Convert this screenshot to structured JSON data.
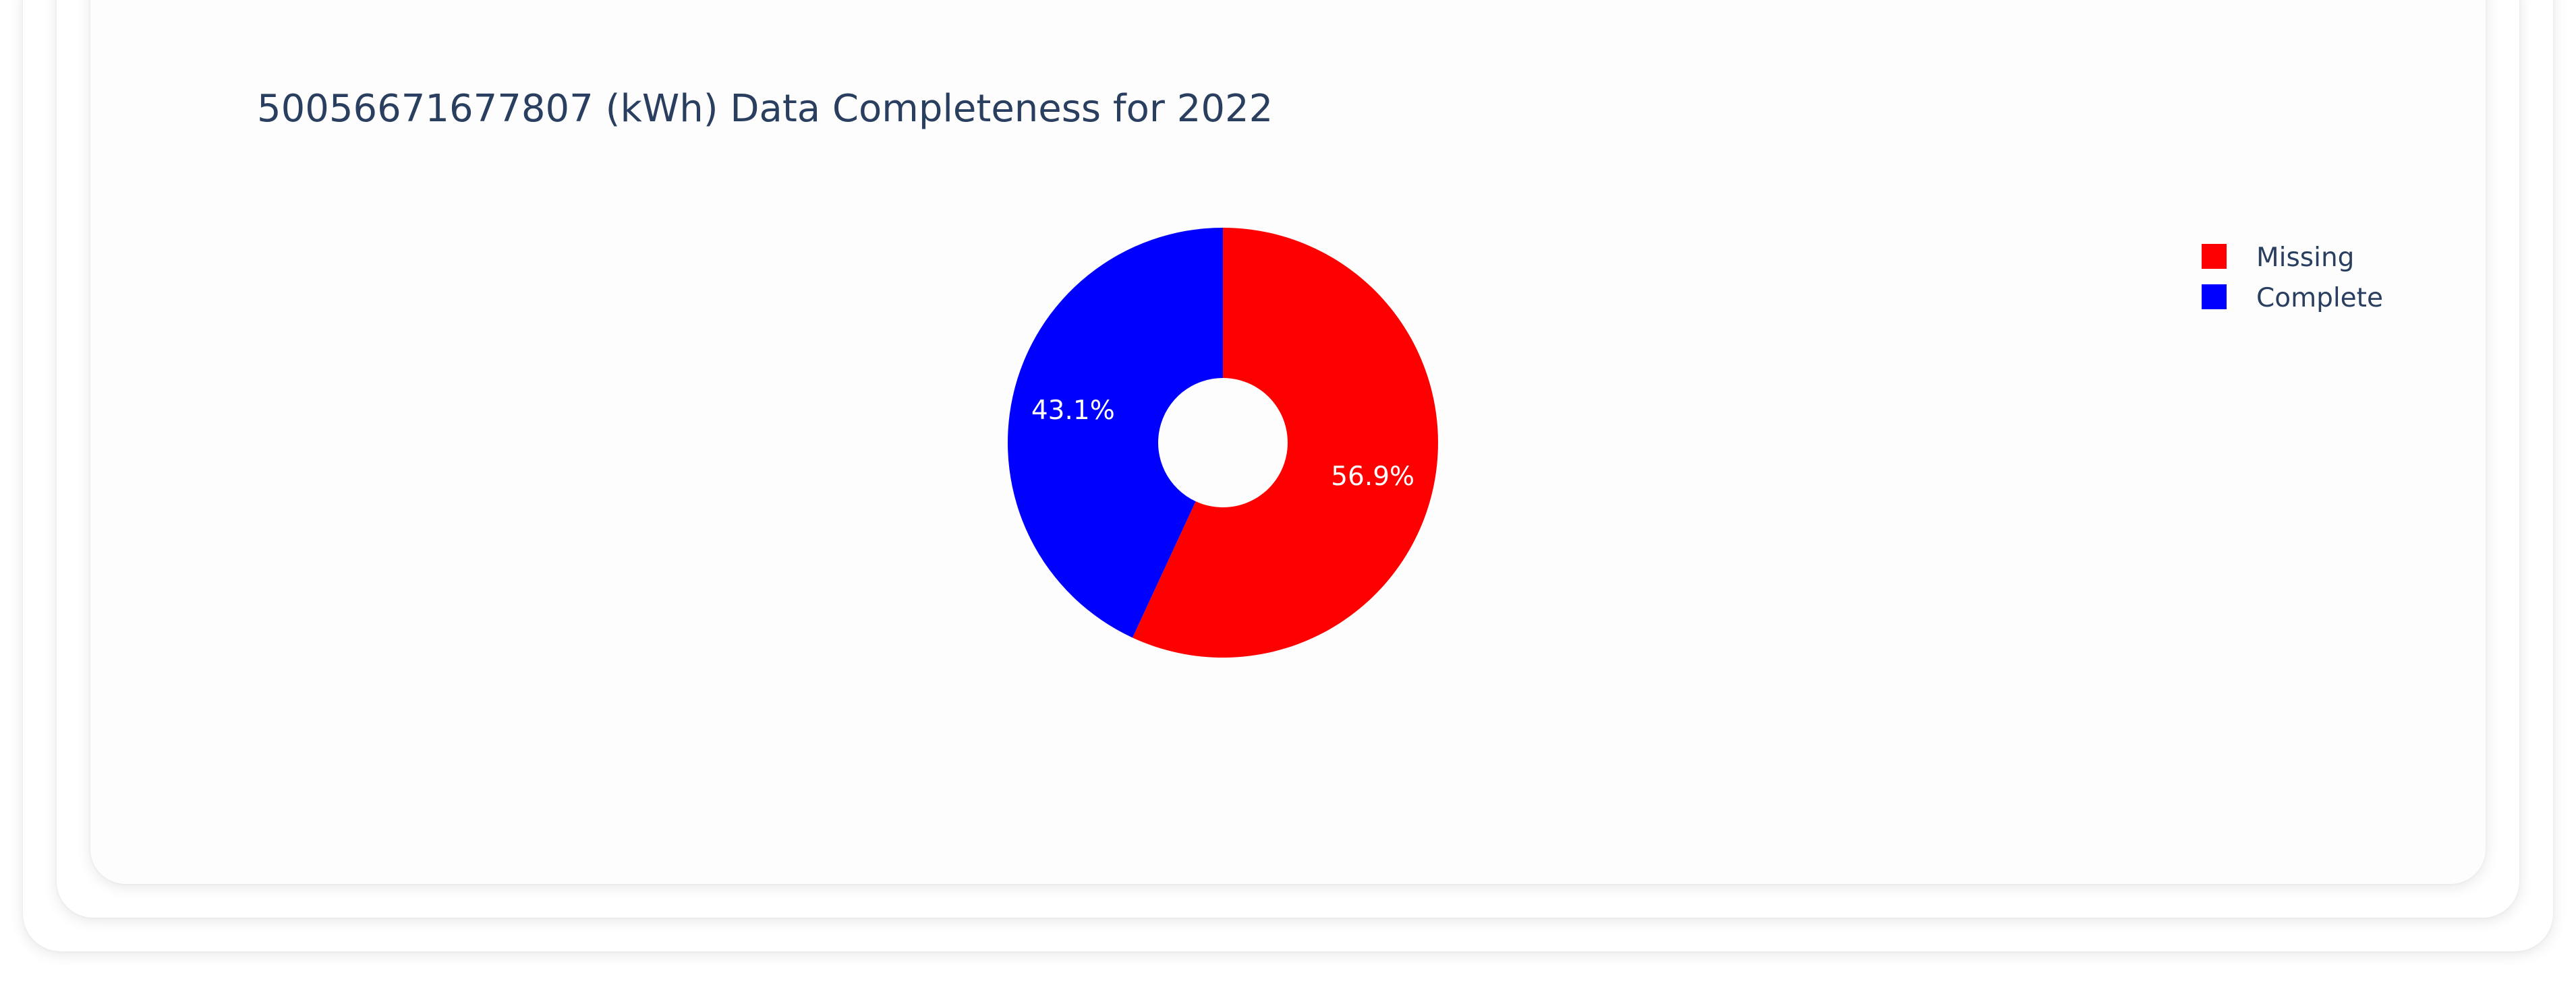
{
  "chart_data": {
    "type": "pie",
    "hole": true,
    "title": "50056671677807 (kWh) Data Completeness for 2022",
    "slices": [
      {
        "name": "Missing",
        "value": 56.9,
        "label": "56.9%",
        "color": "#ff0000"
      },
      {
        "name": "Complete",
        "value": 43.1,
        "label": "43.1%",
        "color": "#0000ff"
      }
    ],
    "legend": {
      "position": "top-right",
      "entries": [
        "Missing",
        "Complete"
      ]
    },
    "colors": {
      "title": "#2a3f5f",
      "legend_text": "#2a3f5f",
      "slice_label": "#ffffff"
    }
  }
}
